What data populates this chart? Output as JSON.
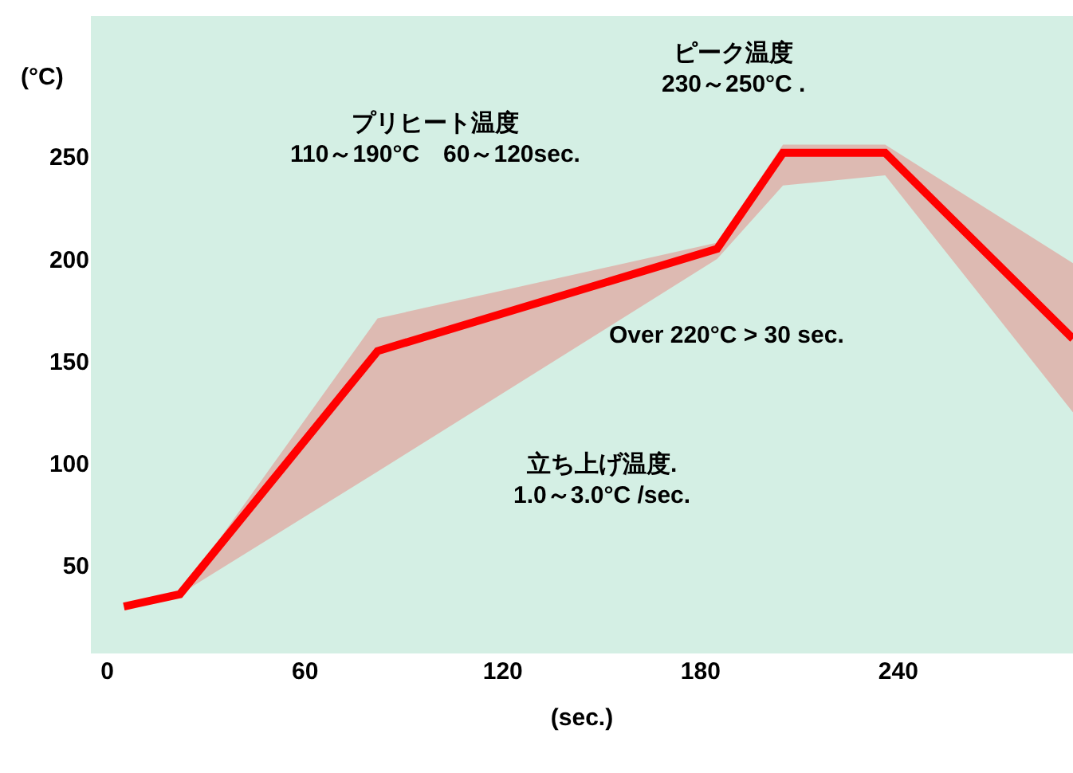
{
  "chart_data": {
    "type": "line",
    "xlabel": "(sec.)",
    "ylabel": "(°C)",
    "x": [
      5,
      22,
      82,
      185,
      205,
      236,
      293
    ],
    "series": [
      {
        "color": "#ff0000",
        "values": [
          30,
          36,
          155,
          205,
          252,
          252,
          161
        ],
        "lower": [
          null,
          36,
          96,
          200,
          236,
          241,
          125
        ],
        "upper": [
          null,
          36,
          171,
          208,
          256,
          256,
          198
        ]
      }
    ],
    "xlim": [
      -5,
      293
    ],
    "ylim": [
      7,
      319
    ],
    "xticks": [
      0,
      60,
      120,
      180,
      240
    ],
    "yticks": [
      50,
      100,
      150,
      200,
      250
    ],
    "grid": false,
    "marker": "none",
    "line_style": "solid",
    "annotations": [
      "プリヒート温度\n110～190°C　60～120sec.",
      "ピーク温度\n230～250°C .",
      "Over 220°C > 30 sec.",
      "立ち上げ温度.\n1.0～3.0°C /sec."
    ]
  }
}
